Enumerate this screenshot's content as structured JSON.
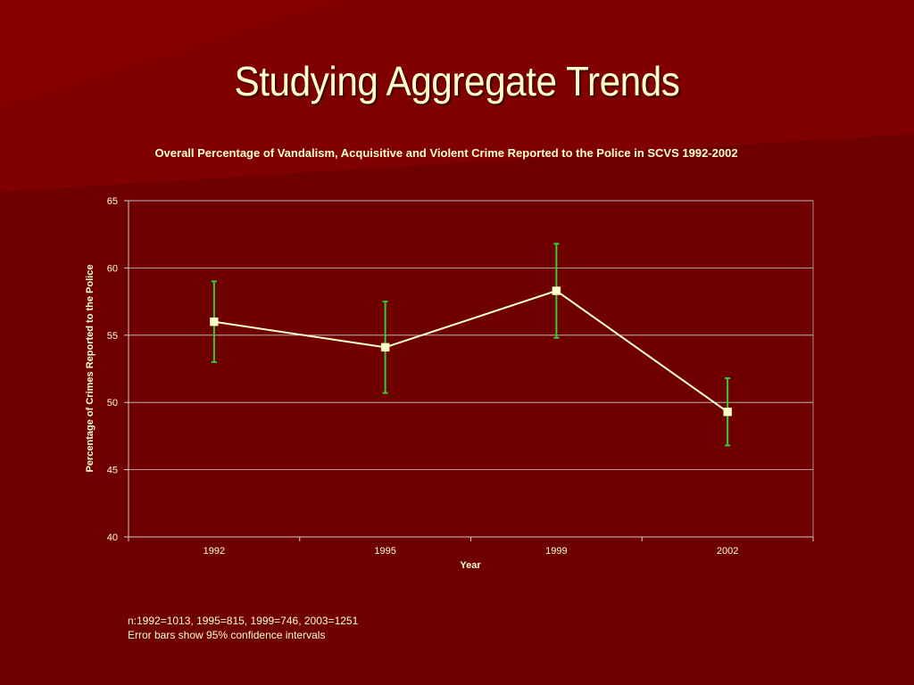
{
  "slide": {
    "title": "Studying Aggregate Trends",
    "background_color": "#6f0000",
    "accent_color": "#8b0000",
    "text_color": "#ffffcc"
  },
  "chart_data": {
    "type": "line",
    "title": "Overall Percentage of Vandalism, Acquisitive and Violent Crime Reported to the Police in SCVS 1992-2002",
    "xlabel": "Year",
    "ylabel": "Percentage of Crimes Reported to the Police",
    "categories": [
      "1992",
      "1995",
      "1999",
      "2002"
    ],
    "values": [
      56.0,
      54.1,
      58.3,
      49.3
    ],
    "error_low": [
      53.0,
      50.7,
      54.8,
      46.8
    ],
    "error_high": [
      59.0,
      57.5,
      61.8,
      51.8
    ],
    "ylim": [
      40,
      65
    ],
    "yticks": [
      "40",
      "45",
      "50",
      "55",
      "60",
      "65"
    ],
    "grid": true,
    "line_color": "#ffffcc",
    "marker_color": "#ffffcc",
    "error_bar_color": "#33cc33",
    "gridline_color": "#cccccc"
  },
  "notes": {
    "sample_sizes": "n:1992=1013, 1995=815, 1999=746, 2003=1251",
    "error_bar_note": "Error bars show 95% confidence intervals"
  }
}
